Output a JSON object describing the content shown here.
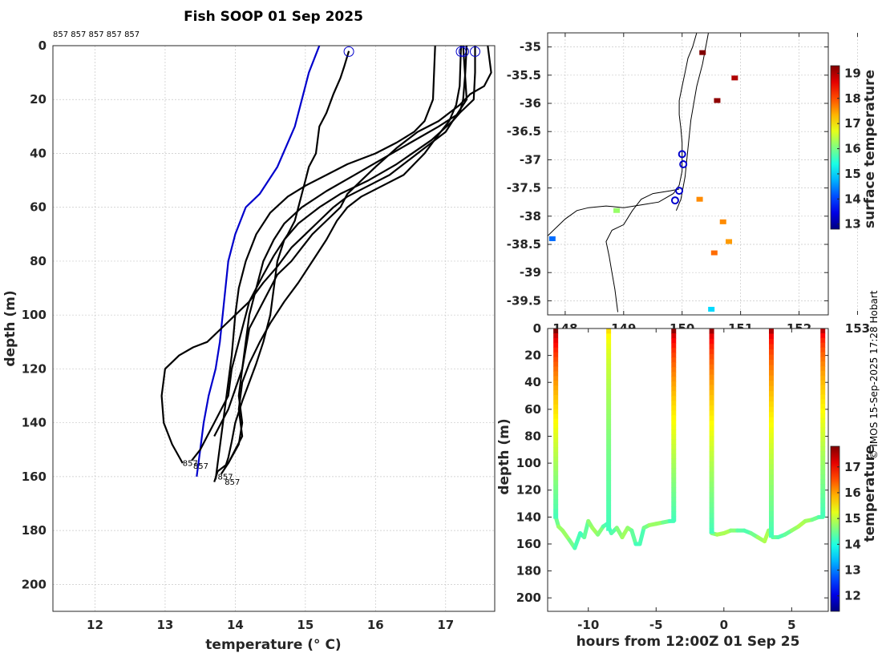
{
  "chart_data": [
    {
      "type": "line",
      "title": "Fish SOOP 01 Sep 2025",
      "xlabel": "temperature (° C)",
      "ylabel": "depth (m)",
      "xlim": [
        11.4,
        17.7
      ],
      "ylim": [
        210,
        0
      ],
      "y_reversed": true,
      "xticks": [
        12,
        13,
        14,
        15,
        16,
        17
      ],
      "yticks": [
        0,
        20,
        40,
        60,
        80,
        100,
        120,
        140,
        160,
        180,
        200
      ],
      "grid": true,
      "top_annotation": "857 857 857 857 857",
      "bottom_labels": [
        "857",
        "857",
        "857",
        "857"
      ],
      "climatology": {
        "color": "#0000cc",
        "t": [
          15.2,
          15.05,
          14.95,
          14.85,
          14.6,
          14.35,
          14.15,
          14.0,
          13.9,
          13.82,
          13.78,
          13.72,
          13.62,
          13.55,
          13.5,
          13.45
        ],
        "d": [
          0,
          10,
          20,
          30,
          45,
          55,
          60,
          70,
          80,
          100,
          110,
          120,
          130,
          140,
          150,
          160
        ]
      },
      "series": [
        {
          "t": [
            15.62,
            15.55,
            15.5,
            15.4,
            15.3,
            15.2,
            15.15,
            15.05,
            15.0,
            14.95,
            14.9,
            14.85,
            14.75,
            14.55,
            14.4,
            14.2,
            14.1,
            14.0,
            13.95,
            13.9,
            13.8,
            13.7,
            13.6,
            13.5,
            13.38
          ],
          "d": [
            2,
            8,
            12,
            18,
            25,
            30,
            40,
            45,
            50,
            55,
            60,
            65,
            70,
            78,
            85,
            95,
            105,
            115,
            120,
            130,
            135,
            140,
            145,
            150,
            154
          ]
        },
        {
          "t": [
            17.6,
            17.65,
            17.55,
            17.35,
            17.2,
            16.9,
            16.6,
            16.3,
            16.0,
            15.8,
            15.6,
            15.5,
            15.3,
            15.1,
            14.95,
            14.8,
            14.6,
            14.4,
            14.2,
            14.1,
            13.9,
            13.7
          ],
          "d": [
            0,
            10,
            15,
            18,
            22,
            28,
            32,
            38,
            45,
            50,
            55,
            60,
            65,
            70,
            75,
            80,
            85,
            95,
            105,
            120,
            135,
            145
          ]
        },
        {
          "t": [
            17.3,
            17.28,
            17.25,
            17.2,
            17.1,
            17.0,
            16.8,
            16.5,
            16.2,
            15.9,
            15.6,
            15.4,
            15.2,
            15.0,
            14.8,
            14.6,
            14.4,
            14.2,
            14.0,
            13.8,
            13.6,
            13.4,
            13.2,
            13.0,
            12.95,
            12.98,
            13.1,
            13.25
          ],
          "d": [
            0,
            10,
            20,
            25,
            28,
            32,
            36,
            42,
            48,
            52,
            56,
            60,
            65,
            70,
            75,
            82,
            88,
            95,
            100,
            105,
            110,
            112,
            115,
            120,
            130,
            140,
            148,
            155
          ]
        },
        {
          "t": [
            17.22,
            17.2,
            17.15,
            17.05,
            16.9,
            16.7,
            16.4,
            16.1,
            15.8,
            15.6,
            15.45,
            15.3,
            15.1,
            14.9,
            14.7,
            14.5,
            14.35,
            14.2,
            14.1,
            14.05,
            14.1,
            14.0,
            13.9,
            13.75,
            13.7
          ],
          "d": [
            0,
            15,
            22,
            28,
            33,
            40,
            48,
            52,
            56,
            60,
            65,
            72,
            80,
            88,
            95,
            103,
            110,
            118,
            125,
            135,
            145,
            150,
            155,
            158,
            162
          ]
        },
        {
          "t": [
            16.85,
            16.82,
            16.7,
            16.55,
            16.3,
            16.0,
            15.6,
            15.3,
            15.0,
            14.75,
            14.5,
            14.3,
            14.15,
            14.05,
            14.0,
            13.95,
            13.9,
            13.85,
            13.8,
            13.75,
            13.72
          ],
          "d": [
            0,
            20,
            28,
            32,
            36,
            40,
            44,
            48,
            52,
            56,
            62,
            70,
            80,
            90,
            100,
            115,
            125,
            135,
            145,
            155,
            161
          ]
        },
        {
          "t": [
            17.42,
            17.42,
            17.4,
            17.2,
            16.9,
            16.5,
            16.1,
            15.7,
            15.3,
            14.95,
            14.7,
            14.55,
            14.4,
            14.3,
            14.2,
            14.15,
            14.1,
            14.05,
            14.1,
            14.05,
            13.9,
            13.8
          ],
          "d": [
            0,
            10,
            20,
            25,
            30,
            36,
            42,
            48,
            54,
            60,
            66,
            72,
            80,
            90,
            100,
            110,
            120,
            130,
            140,
            148,
            155,
            159
          ]
        },
        {
          "t": [
            17.25,
            17.3,
            17.1,
            16.8,
            16.3,
            15.9,
            15.5,
            15.2,
            14.9,
            14.7,
            14.6,
            14.55,
            14.5,
            14.4,
            14.3,
            14.2,
            14.1,
            14.0,
            13.95,
            13.9,
            13.85
          ],
          "d": [
            0,
            20,
            28,
            35,
            44,
            50,
            55,
            60,
            66,
            72,
            80,
            90,
            100,
            110,
            118,
            125,
            132,
            140,
            147,
            153,
            157
          ]
        }
      ],
      "surface_markers": [
        {
          "t": 15.62,
          "d": 1
        },
        {
          "t": 17.22,
          "d": 1
        },
        {
          "t": 17.26,
          "d": 1
        },
        {
          "t": 17.42,
          "d": 1
        }
      ]
    },
    {
      "type": "heatmap",
      "xticks": [
        148,
        149,
        150,
        151,
        152,
        153
      ],
      "xtick_labels": [
        "148",
        "149",
        "150",
        "151",
        "152",
        "153"
      ],
      "xlim": [
        147.7,
        152.5
      ],
      "ylim": [
        -39.75,
        -34.75
      ],
      "yticks": [
        -35,
        -35.5,
        -36,
        -36.5,
        -37,
        -37.5,
        -38,
        -38.5,
        -39,
        -39.5
      ],
      "ytick_labels": [
        "-35",
        "-35.5",
        "-36",
        "-36.5",
        "-37",
        "-37.5",
        "-38",
        "-38.5",
        "-39",
        "-39.5"
      ],
      "colorbar_label": "surface temperature",
      "colorbar_ticks": [
        13,
        14,
        15,
        16,
        17,
        18,
        19
      ],
      "colorbar_range": [
        12.8,
        19.3
      ],
      "cast_locations": [
        {
          "lon": 150.0,
          "lat": -36.9
        },
        {
          "lon": 150.02,
          "lat": -37.08
        },
        {
          "lon": 149.95,
          "lat": -37.55
        },
        {
          "lon": 149.88,
          "lat": -37.72
        }
      ],
      "sst_patches": [
        {
          "lon": 150.6,
          "lat": -35.95,
          "value": 19.2
        },
        {
          "lon": 150.9,
          "lat": -35.55,
          "value": 19.0
        },
        {
          "lon": 150.35,
          "lat": -35.1,
          "value": 19.3
        },
        {
          "lon": 150.3,
          "lat": -37.7,
          "value": 17.6
        },
        {
          "lon": 150.7,
          "lat": -38.1,
          "value": 17.6
        },
        {
          "lon": 150.55,
          "lat": -38.65,
          "value": 17.8
        },
        {
          "lon": 148.88,
          "lat": -37.9,
          "value": 16.2
        },
        {
          "lon": 147.78,
          "lat": -38.4,
          "value": 14.3
        },
        {
          "lon": 150.8,
          "lat": -38.45,
          "value": 17.5
        },
        {
          "lon": 150.5,
          "lat": -39.65,
          "value": 15.0
        }
      ]
    },
    {
      "type": "heatmap",
      "xlabel": "hours from 12:00Z 01 Sep 25",
      "ylabel": "depth (m)",
      "xlim": [
        -13.0,
        7.7
      ],
      "ylim": [
        210,
        0
      ],
      "xticks": [
        -10,
        -5,
        0,
        5
      ],
      "yticks": [
        0,
        20,
        40,
        60,
        80,
        100,
        120,
        140,
        160,
        180,
        200
      ],
      "colorbar_label": "temperature",
      "colorbar_ticks": [
        12,
        13,
        14,
        15,
        16,
        17
      ],
      "colorbar_range": [
        11.4,
        17.8
      ],
      "bottom_track": {
        "h": [
          -12.4,
          -12.2,
          -11.9,
          -11.4,
          -11.0,
          -10.6,
          -10.3,
          -10.0,
          -9.7,
          -9.3,
          -8.9,
          -8.6,
          -8.3,
          -7.9,
          -7.5,
          -7.1,
          -6.8,
          -6.5,
          -6.2,
          -5.9,
          -5.5,
          -5.0,
          -4.5,
          -4.0,
          -3.7
        ],
        "d": [
          140,
          147,
          150,
          157,
          163,
          152,
          155,
          143,
          148,
          153,
          147,
          145,
          152,
          148,
          155,
          148,
          150,
          160,
          160,
          148,
          146,
          145,
          144,
          143,
          143
        ]
      },
      "bottom_track_2": {
        "h": [
          -0.9,
          -0.5,
          0.0,
          0.5,
          1.0,
          1.5,
          2.0,
          2.5,
          3.0,
          3.3,
          3.6,
          4.0,
          4.5,
          5.0,
          5.5,
          6.0,
          6.5,
          7.0,
          7.3
        ],
        "d": [
          152,
          153,
          152,
          150,
          150,
          150,
          152,
          155,
          158,
          150,
          155,
          155,
          153,
          150,
          147,
          143,
          142,
          140,
          140
        ]
      },
      "casts": [
        {
          "h": -12.4,
          "bottom": 141,
          "t_surface": 17.8
        },
        {
          "h": -8.5,
          "bottom": 150,
          "t_surface": 15.6
        },
        {
          "h": -3.7,
          "bottom": 143,
          "t_surface": 17.7
        },
        {
          "h": -0.9,
          "bottom": 152,
          "t_surface": 17.6
        },
        {
          "h": 3.5,
          "bottom": 155,
          "t_surface": 17.5
        },
        {
          "h": 7.3,
          "bottom": 140,
          "t_surface": 17.4
        }
      ]
    }
  ],
  "credit": "© IMOS 15-Sep-2025 17:28 Hobart"
}
